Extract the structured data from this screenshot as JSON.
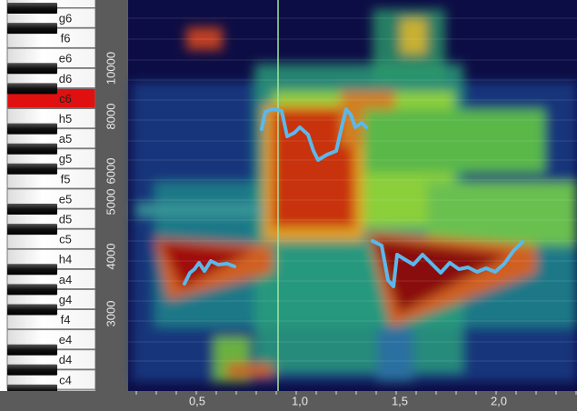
{
  "keyboard": {
    "keys": [
      "g6",
      "f6",
      "e6",
      "d6",
      "c6",
      "h5",
      "a5",
      "g5",
      "f5",
      "e5",
      "d5",
      "c5",
      "h4",
      "a4",
      "g4",
      "f4",
      "e4",
      "d4",
      "c4"
    ],
    "active": "c6"
  },
  "y_axis": {
    "labels": [
      "10000",
      "8000",
      "6000",
      "5000",
      "4000",
      "3000"
    ]
  },
  "x_axis": {
    "labels": [
      "0,5",
      "1,0",
      "1,5",
      "2,0"
    ]
  }
}
